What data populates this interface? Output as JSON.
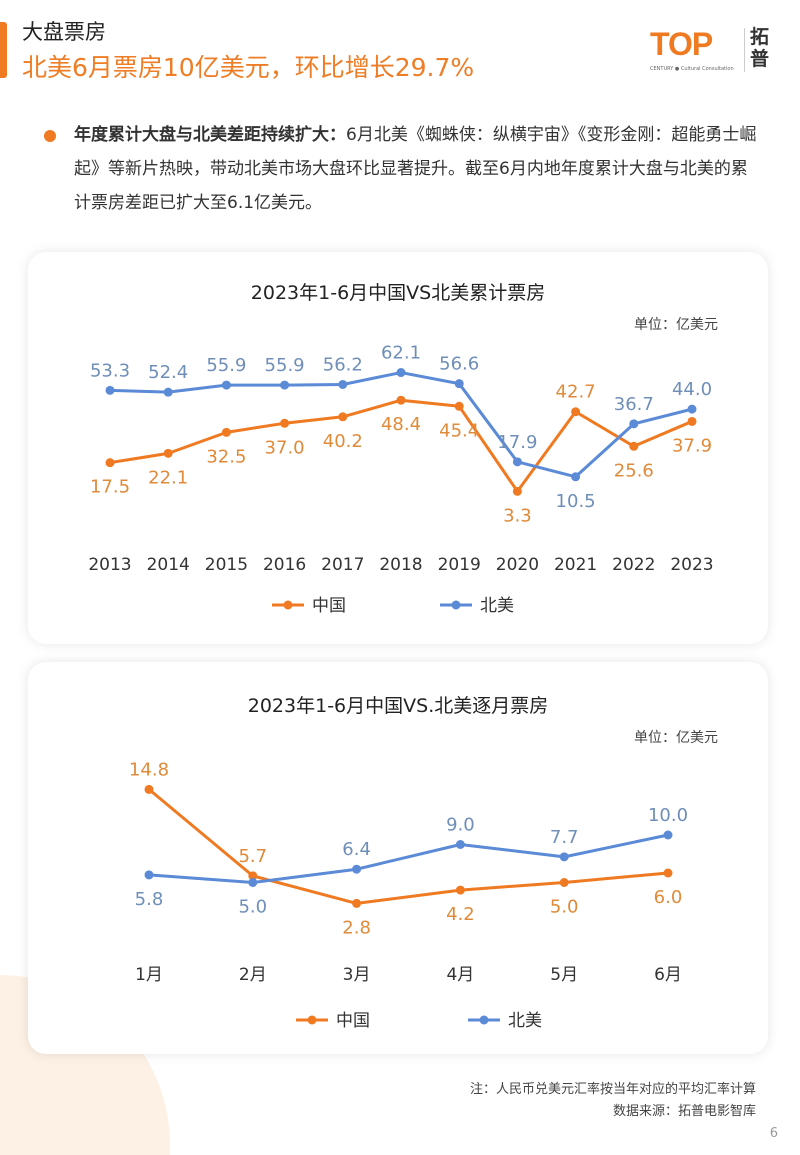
{
  "header": {
    "section": "大盘票房",
    "headline": "北美6月票房10亿美元，环比增长29.7%"
  },
  "logo": {
    "text": "TOP",
    "subtitle": "CENTURY ● Cultural Consultation",
    "cn": "拓普"
  },
  "body": {
    "bold": "年度累计大盘与北美差距持续扩大：",
    "text": "6月北美《蜘蛛侠：纵横宇宙》《变形金刚：超能勇士崛起》等新片热映，带动北美市场大盘环比显著提升。截至6月内地年度累计大盘与北美的累计票房差距已扩大至6.1亿美元。"
  },
  "colors": {
    "china": "#f07a22",
    "na": "#5b8ad6",
    "accent": "#ee7d25"
  },
  "chart_data": [
    {
      "type": "line",
      "title": "2023年1-6月中国VS北美累计票房",
      "unit": "单位：亿美元",
      "categories": [
        "2013",
        "2014",
        "2015",
        "2016",
        "2017",
        "2018",
        "2019",
        "2020",
        "2021",
        "2022",
        "2023"
      ],
      "series": [
        {
          "name": "中国",
          "values": [
            17.5,
            22.1,
            32.5,
            37.0,
            40.2,
            48.4,
            45.4,
            3.3,
            42.7,
            25.6,
            37.9
          ]
        },
        {
          "name": "北美",
          "values": [
            53.3,
            52.4,
            55.9,
            55.9,
            56.2,
            62.1,
            56.6,
            17.9,
            10.5,
            36.7,
            44.0
          ]
        }
      ],
      "legend": "bottom",
      "grid": false
    },
    {
      "type": "line",
      "title": "2023年1-6月中国VS.北美逐月票房",
      "unit": "单位：亿美元",
      "categories": [
        "1月",
        "2月",
        "3月",
        "4月",
        "5月",
        "6月"
      ],
      "series": [
        {
          "name": "中国",
          "values": [
            14.8,
            5.7,
            2.8,
            4.2,
            5.0,
            6.0
          ]
        },
        {
          "name": "北美",
          "values": [
            5.8,
            5.0,
            6.4,
            9.0,
            7.7,
            10.0
          ]
        }
      ],
      "legend": "bottom",
      "grid": false
    }
  ],
  "footer": {
    "note": "注：人民币兑美元汇率按当年对应的平均汇率计算",
    "source": "数据来源：拓普电影智库",
    "page": "6"
  }
}
